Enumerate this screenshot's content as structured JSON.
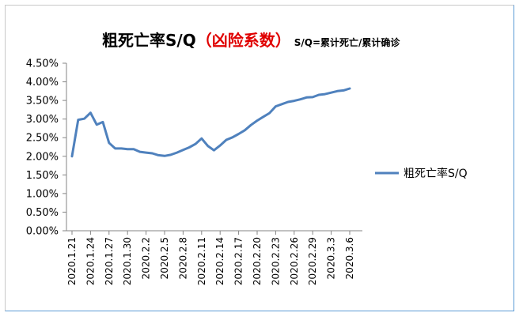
{
  "chart_data": {
    "type": "line",
    "title": {
      "main": "粗死亡率S/Q",
      "highlight": "（凶险系数）",
      "note": "S/Q=累计死亡/累计确诊"
    },
    "xlabel": "",
    "ylabel": "",
    "ylim": [
      0,
      4.5
    ],
    "y_tick_labels": [
      "0.00%",
      "0.50%",
      "1.00%",
      "1.50%",
      "2.00%",
      "2.50%",
      "3.00%",
      "3.50%",
      "4.00%",
      "4.50%"
    ],
    "y_tick_values": [
      0,
      0.5,
      1.0,
      1.5,
      2.0,
      2.5,
      3.0,
      3.5,
      4.0,
      4.5
    ],
    "x_tick_labels": [
      "2020.1.21",
      "2020.1.24",
      "2020.1.27",
      "2020.1.30",
      "2020.2.2",
      "2020.2.5",
      "2020.2.8",
      "2020.2.11",
      "2020.2.14",
      "2020.2.17",
      "2020.2.20",
      "2020.2.23",
      "2020.2.26",
      "2020.2.29",
      "2020.3.3",
      "2020.3.6"
    ],
    "x": [
      "2020.1.21",
      "2020.1.22",
      "2020.1.23",
      "2020.1.24",
      "2020.1.25",
      "2020.1.26",
      "2020.1.27",
      "2020.1.28",
      "2020.1.29",
      "2020.1.30",
      "2020.1.31",
      "2020.2.1",
      "2020.2.2",
      "2020.2.3",
      "2020.2.4",
      "2020.2.5",
      "2020.2.6",
      "2020.2.7",
      "2020.2.8",
      "2020.2.9",
      "2020.2.10",
      "2020.2.11",
      "2020.2.12",
      "2020.2.13",
      "2020.2.14",
      "2020.2.15",
      "2020.2.16",
      "2020.2.17",
      "2020.2.18",
      "2020.2.19",
      "2020.2.20",
      "2020.2.21",
      "2020.2.22",
      "2020.2.23",
      "2020.2.24",
      "2020.2.25",
      "2020.2.26",
      "2020.2.27",
      "2020.2.28",
      "2020.2.29",
      "2020.3.1",
      "2020.3.2",
      "2020.3.3",
      "2020.3.4",
      "2020.3.5",
      "2020.3.6"
    ],
    "series": [
      {
        "name": "粗死亡率S/Q",
        "color": "#4f81bd",
        "values": [
          2.0,
          2.98,
          3.01,
          3.17,
          2.85,
          2.92,
          2.36,
          2.21,
          2.21,
          2.19,
          2.19,
          2.12,
          2.1,
          2.08,
          2.03,
          2.01,
          2.04,
          2.1,
          2.17,
          2.24,
          2.33,
          2.48,
          2.28,
          2.16,
          2.29,
          2.44,
          2.51,
          2.6,
          2.7,
          2.84,
          2.96,
          3.06,
          3.16,
          3.34,
          3.4,
          3.46,
          3.49,
          3.53,
          3.58,
          3.59,
          3.65,
          3.67,
          3.71,
          3.75,
          3.77,
          3.82
        ]
      }
    ],
    "grid": false,
    "legend_position": "right"
  }
}
